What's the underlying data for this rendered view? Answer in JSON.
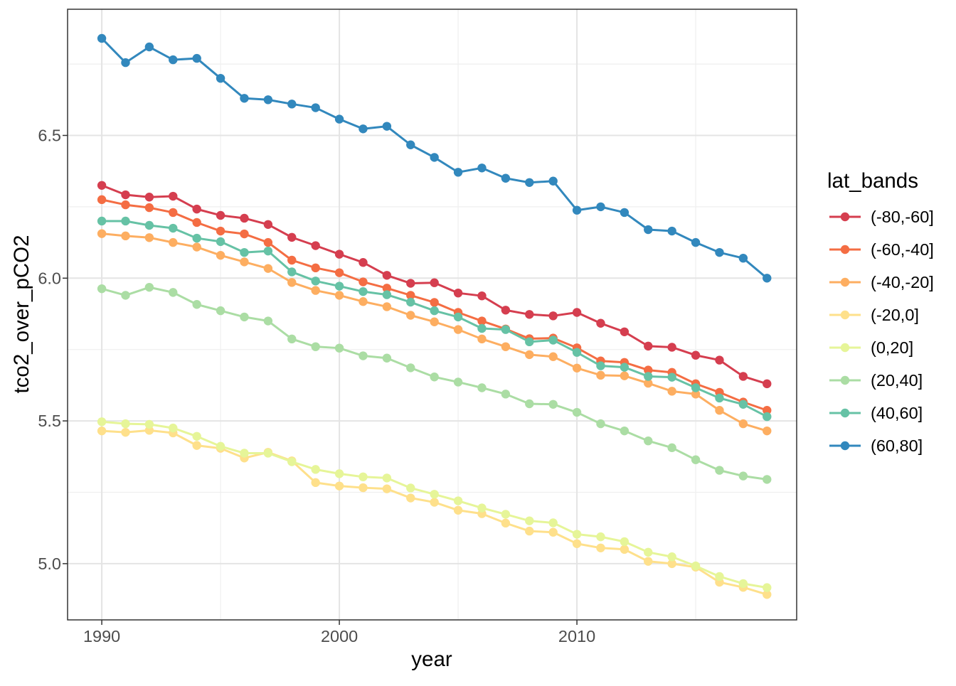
{
  "chart_data": {
    "type": "line",
    "title": "",
    "xlabel": "year",
    "ylabel": "tco2_over_pCO2",
    "legend_title": "lat_bands",
    "legend_position": "right",
    "grid": true,
    "marker": "point",
    "x": [
      1990,
      1991,
      1992,
      1993,
      1994,
      1995,
      1996,
      1997,
      1998,
      1999,
      2000,
      2001,
      2002,
      2003,
      2004,
      2005,
      2006,
      2007,
      2008,
      2009,
      2010,
      2011,
      2012,
      2013,
      2014,
      2015,
      2016,
      2017,
      2018
    ],
    "series": [
      {
        "name": "(-80,-60]",
        "color": "#D53E4F",
        "values": [
          6.325,
          6.292,
          6.284,
          6.287,
          6.242,
          6.22,
          6.21,
          6.188,
          6.143,
          6.114,
          6.084,
          6.055,
          6.01,
          5.982,
          5.984,
          5.948,
          5.938,
          5.888,
          5.873,
          5.868,
          5.88,
          5.842,
          5.812,
          5.762,
          5.758,
          5.73,
          5.713,
          5.656,
          5.63
        ]
      },
      {
        "name": "(-60,-40]",
        "color": "#F46D43",
        "values": [
          6.275,
          6.257,
          6.247,
          6.23,
          6.195,
          6.165,
          6.155,
          6.125,
          6.063,
          6.036,
          6.019,
          5.987,
          5.965,
          5.94,
          5.915,
          5.88,
          5.85,
          5.822,
          5.788,
          5.79,
          5.756,
          5.71,
          5.705,
          5.678,
          5.67,
          5.63,
          5.6,
          5.566,
          5.537
        ]
      },
      {
        "name": "(-40,-20]",
        "color": "#FDAE61",
        "values": [
          6.156,
          6.148,
          6.142,
          6.125,
          6.109,
          6.08,
          6.057,
          6.034,
          5.985,
          5.957,
          5.94,
          5.918,
          5.9,
          5.87,
          5.847,
          5.82,
          5.787,
          5.76,
          5.732,
          5.725,
          5.685,
          5.66,
          5.658,
          5.632,
          5.604,
          5.594,
          5.537,
          5.49,
          5.465
        ]
      },
      {
        "name": "(-20,0]",
        "color": "#FEE08B",
        "values": [
          5.465,
          5.46,
          5.467,
          5.458,
          5.414,
          5.404,
          5.37,
          5.39,
          5.36,
          5.284,
          5.272,
          5.266,
          5.262,
          5.23,
          5.215,
          5.187,
          5.175,
          5.142,
          5.114,
          5.11,
          5.07,
          5.055,
          5.05,
          5.008,
          5.0,
          4.988,
          4.935,
          4.917,
          4.892
        ]
      },
      {
        "name": "(0,20]",
        "color": "#E6F598",
        "values": [
          5.497,
          5.49,
          5.488,
          5.475,
          5.446,
          5.411,
          5.387,
          5.387,
          5.357,
          5.33,
          5.315,
          5.304,
          5.3,
          5.265,
          5.243,
          5.22,
          5.195,
          5.173,
          5.15,
          5.143,
          5.103,
          5.094,
          5.077,
          5.04,
          5.024,
          4.992,
          4.955,
          4.93,
          4.916
        ]
      },
      {
        "name": "(20,40]",
        "color": "#ABDDA4",
        "values": [
          5.963,
          5.94,
          5.968,
          5.95,
          5.908,
          5.886,
          5.864,
          5.85,
          5.787,
          5.76,
          5.755,
          5.728,
          5.72,
          5.686,
          5.654,
          5.636,
          5.616,
          5.594,
          5.56,
          5.558,
          5.53,
          5.49,
          5.465,
          5.43,
          5.406,
          5.364,
          5.327,
          5.307,
          5.295
        ]
      },
      {
        "name": "(40,60]",
        "color": "#66C2A5",
        "values": [
          6.2,
          6.2,
          6.185,
          6.175,
          6.14,
          6.128,
          6.09,
          6.095,
          6.022,
          5.99,
          5.972,
          5.953,
          5.942,
          5.916,
          5.886,
          5.864,
          5.824,
          5.82,
          5.777,
          5.783,
          5.74,
          5.693,
          5.688,
          5.656,
          5.653,
          5.616,
          5.58,
          5.558,
          5.515
        ]
      },
      {
        "name": "(60,80]",
        "color": "#3288BD",
        "values": [
          6.84,
          6.755,
          6.81,
          6.765,
          6.77,
          6.7,
          6.63,
          6.625,
          6.61,
          6.597,
          6.557,
          6.523,
          6.532,
          6.467,
          6.423,
          6.371,
          6.386,
          6.35,
          6.335,
          6.34,
          6.238,
          6.25,
          6.23,
          6.17,
          6.165,
          6.125,
          6.09,
          6.07,
          6.0
        ]
      }
    ],
    "x_ticks": {
      "values": [
        1990,
        2000,
        2010
      ],
      "labels": [
        "1990",
        "2000",
        "2010"
      ]
    },
    "y_ticks": {
      "values": [
        5.0,
        5.5,
        6.0,
        6.5
      ],
      "labels": [
        "5.0",
        "5.5",
        "6.0",
        "6.5"
      ]
    },
    "x_minor": [
      1995,
      2005,
      2015
    ],
    "y_minor": [
      5.25,
      5.75,
      6.25,
      6.75
    ],
    "x_domain": [
      1988.56,
      2019.25
    ],
    "y_domain": [
      4.803,
      6.942
    ]
  },
  "style": {
    "panel_background": "#ffffff",
    "panel_border": "#333333",
    "grid_major": "#e4e4e4",
    "grid_minor": "#efefef",
    "tick_color": "#333333",
    "tick_text_color": "#4d4d4d",
    "title_text_color": "#000000"
  }
}
